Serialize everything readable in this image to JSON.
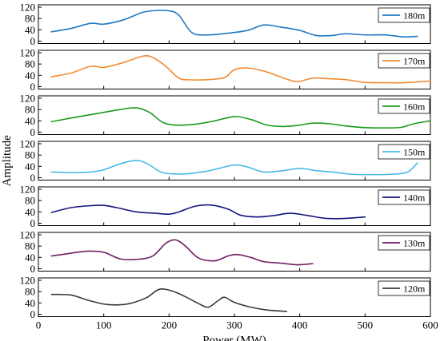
{
  "chart_data": {
    "type": "line",
    "xlabel": "Power (MW)",
    "ylabel": "Amplitude",
    "xlim": [
      0,
      600
    ],
    "xticks": [
      0,
      100,
      200,
      300,
      400,
      500,
      600
    ],
    "ylim": [
      0,
      120
    ],
    "yticks": [
      0,
      40,
      80,
      120
    ],
    "legend_position": "top-right",
    "grid": false,
    "panels": [
      {
        "name": "180m",
        "color": "#1f77c4",
        "x": [
          20,
          50,
          80,
          100,
          130,
          160,
          180,
          200,
          215,
          235,
          260,
          290,
          320,
          345,
          370,
          400,
          425,
          450,
          470,
          500,
          530,
          560,
          580
        ],
        "y": [
          33,
          45,
          63,
          60,
          75,
          102,
          108,
          107,
          92,
          30,
          22,
          28,
          38,
          57,
          50,
          38,
          20,
          20,
          26,
          22,
          22,
          15,
          17
        ]
      },
      {
        "name": "170m",
        "color": "#f28a30",
        "x": [
          20,
          50,
          80,
          100,
          130,
          160,
          175,
          195,
          215,
          235,
          260,
          285,
          300,
          320,
          345,
          370,
          395,
          420,
          445,
          470,
          500,
          530,
          560,
          600
        ],
        "y": [
          35,
          48,
          72,
          68,
          85,
          108,
          103,
          72,
          30,
          24,
          25,
          32,
          60,
          66,
          55,
          35,
          18,
          30,
          28,
          25,
          15,
          14,
          14,
          20
        ]
      },
      {
        "name": "160m",
        "color": "#1a9a1a",
        "x": [
          20,
          50,
          80,
          100,
          125,
          150,
          170,
          190,
          210,
          240,
          270,
          300,
          325,
          350,
          375,
          400,
          420,
          445,
          470,
          500,
          530,
          555,
          575,
          600
        ],
        "y": [
          37,
          50,
          62,
          70,
          80,
          86,
          70,
          35,
          25,
          28,
          40,
          55,
          45,
          25,
          20,
          25,
          32,
          30,
          22,
          16,
          15,
          17,
          30,
          40
        ]
      },
      {
        "name": "150m",
        "color": "#4ab8e8",
        "x": [
          20,
          50,
          80,
          100,
          120,
          140,
          155,
          170,
          190,
          220,
          250,
          275,
          300,
          320,
          345,
          375,
          400,
          425,
          450,
          480,
          510,
          540,
          565,
          580
        ],
        "y": [
          20,
          18,
          20,
          28,
          45,
          58,
          60,
          45,
          18,
          13,
          20,
          32,
          45,
          38,
          20,
          25,
          33,
          25,
          20,
          12,
          11,
          12,
          20,
          52
        ]
      },
      {
        "name": "140m",
        "color": "#14147f",
        "x": [
          20,
          50,
          80,
          100,
          120,
          150,
          180,
          200,
          215,
          240,
          265,
          290,
          310,
          335,
          360,
          385,
          410,
          440,
          470,
          500
        ],
        "y": [
          38,
          55,
          62,
          63,
          55,
          40,
          35,
          32,
          40,
          60,
          64,
          50,
          28,
          22,
          27,
          35,
          28,
          17,
          17,
          22
        ]
      },
      {
        "name": "130m",
        "color": "#6e1f62",
        "x": [
          20,
          50,
          75,
          100,
          125,
          150,
          175,
          195,
          210,
          225,
          245,
          270,
          290,
          305,
          325,
          345,
          370,
          390,
          400,
          420
        ],
        "y": [
          45,
          55,
          62,
          58,
          35,
          33,
          45,
          90,
          102,
          80,
          38,
          28,
          45,
          50,
          40,
          25,
          20,
          15,
          14,
          18
        ]
      },
      {
        "name": "120m",
        "color": "#3a3a3a",
        "x": [
          20,
          50,
          75,
          100,
          120,
          140,
          165,
          185,
          205,
          225,
          245,
          260,
          275,
          285,
          300,
          325,
          350,
          380
        ],
        "y": [
          70,
          68,
          50,
          36,
          33,
          38,
          58,
          88,
          82,
          62,
          38,
          25,
          48,
          60,
          42,
          25,
          15,
          10
        ]
      }
    ]
  }
}
